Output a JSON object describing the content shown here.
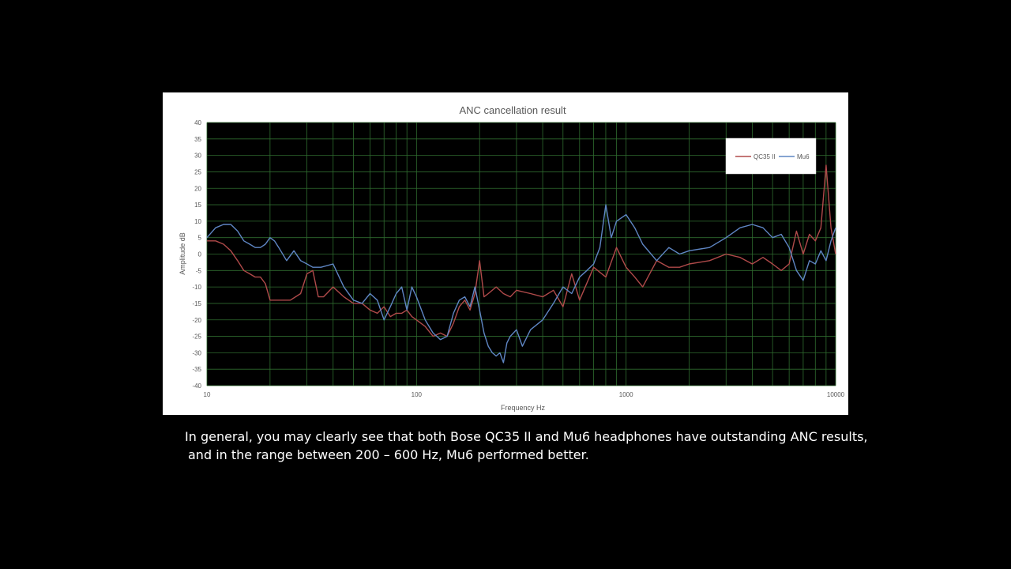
{
  "colors": {
    "slide_background": "#000000",
    "panel_background": "#ffffff",
    "plot_background": "#000000",
    "grid": "#2f6b2f",
    "qc35": "#b04a4a",
    "mu6": "#5f86c4",
    "text": "#595959",
    "caption": "#ffffff"
  },
  "caption": {
    "line1": "In general, you may clearly see that both Bose QC35 II and Mu6 headphones have outstanding ANC results,",
    "line2": "and in the range between 200 – 600 Hz, Mu6 performed better."
  },
  "chart_data": {
    "type": "line",
    "title": "ANC cancellation result",
    "xlabel": "Frequency Hz",
    "ylabel": "Amplitude dB",
    "x_scale": "log",
    "xlim": [
      10,
      10000
    ],
    "ylim": [
      -40,
      40
    ],
    "x_ticks": [
      10,
      100,
      1000,
      10000
    ],
    "x_tick_labels": [
      "10",
      "100",
      "1000",
      "10000"
    ],
    "y_ticks": [
      -40,
      -35,
      -30,
      -25,
      -20,
      -15,
      -10,
      -5,
      0,
      5,
      10,
      15,
      20,
      25,
      30,
      35,
      40
    ],
    "grid": true,
    "legend_position": "top-right",
    "series": [
      {
        "name": "QC35 II",
        "color": "#b04a4a",
        "x": [
          10,
          11,
          12,
          13,
          14,
          15,
          16,
          17,
          18,
          19,
          20,
          22,
          25,
          28,
          30,
          32,
          34,
          36,
          40,
          45,
          50,
          55,
          60,
          65,
          70,
          75,
          80,
          85,
          90,
          95,
          100,
          110,
          120,
          130,
          140,
          150,
          160,
          170,
          180,
          190,
          200,
          210,
          220,
          240,
          260,
          280,
          300,
          350,
          400,
          450,
          500,
          550,
          600,
          700,
          800,
          900,
          1000,
          1100,
          1200,
          1400,
          1600,
          1800,
          2000,
          2500,
          3000,
          3500,
          4000,
          4500,
          5000,
          5500,
          6000,
          6500,
          7000,
          7500,
          8000,
          8500,
          9000,
          9500,
          10000
        ],
        "y": [
          4,
          4,
          3,
          1,
          -2,
          -5,
          -6,
          -7,
          -7,
          -9,
          -14,
          -14,
          -14,
          -12,
          -6,
          -5,
          -13,
          -13,
          -10,
          -13,
          -15,
          -15,
          -17,
          -18,
          -16,
          -19,
          -18,
          -18,
          -17,
          -19,
          -20,
          -22,
          -25,
          -24,
          -25,
          -21,
          -16,
          -14,
          -17,
          -12,
          -2,
          -13,
          -12,
          -10,
          -12,
          -13,
          -11,
          -12,
          -13,
          -11,
          -16,
          -6,
          -14,
          -4,
          -7,
          2,
          -4,
          -7,
          -10,
          -2,
          -4,
          -4,
          -3,
          -2,
          0,
          -1,
          -3,
          -1,
          -3,
          -5,
          -3,
          7,
          0,
          6,
          4,
          8,
          27,
          8,
          0
        ]
      },
      {
        "name": "Mu6",
        "color": "#5f86c4",
        "x": [
          10,
          11,
          12,
          13,
          14,
          15,
          16,
          17,
          18,
          19,
          20,
          21,
          22,
          24,
          26,
          28,
          30,
          32,
          35,
          40,
          45,
          50,
          55,
          60,
          65,
          70,
          75,
          80,
          85,
          90,
          95,
          100,
          110,
          120,
          130,
          140,
          150,
          160,
          170,
          180,
          190,
          200,
          210,
          220,
          230,
          240,
          250,
          260,
          270,
          280,
          300,
          320,
          350,
          400,
          450,
          500,
          550,
          600,
          650,
          700,
          750,
          800,
          850,
          900,
          1000,
          1100,
          1200,
          1400,
          1600,
          1800,
          2000,
          2500,
          3000,
          3500,
          4000,
          4500,
          5000,
          5500,
          6000,
          6500,
          7000,
          7500,
          8000,
          8500,
          9000,
          9500,
          10000
        ],
        "y": [
          5,
          8,
          9,
          9,
          7,
          4,
          3,
          2,
          2,
          3,
          5,
          4,
          2,
          -2,
          1,
          -2,
          -3,
          -4,
          -4,
          -3,
          -10,
          -14,
          -15,
          -12,
          -14,
          -20,
          -16,
          -12,
          -10,
          -17,
          -10,
          -13,
          -20,
          -24,
          -26,
          -25,
          -18,
          -14,
          -13,
          -16,
          -10,
          -17,
          -24,
          -28,
          -30,
          -31,
          -30,
          -33,
          -27,
          -25,
          -23,
          -28,
          -23,
          -20,
          -15,
          -10,
          -12,
          -7,
          -5,
          -3,
          2,
          15,
          5,
          10,
          12,
          8,
          3,
          -2,
          2,
          0,
          1,
          2,
          5,
          8,
          9,
          8,
          5,
          6,
          2,
          -5,
          -8,
          -2,
          -3,
          1,
          -2,
          4,
          8
        ]
      }
    ]
  }
}
